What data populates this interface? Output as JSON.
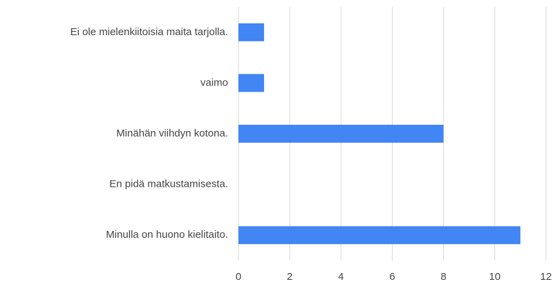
{
  "chart_data": {
    "type": "bar",
    "orientation": "horizontal",
    "categories": [
      "Ei ole mielenkiitoisia maita tarjolla.",
      "vaimo",
      "Minähän viihdyn kotona.",
      "En pidä matkustamisesta.",
      "Minulla on huono kielitaito."
    ],
    "values": [
      1,
      1,
      8,
      0,
      11
    ],
    "color": "#4285f4",
    "xlim": [
      0,
      12
    ],
    "xticks": [
      0,
      2,
      4,
      6,
      8,
      10,
      12
    ],
    "grid": true
  }
}
